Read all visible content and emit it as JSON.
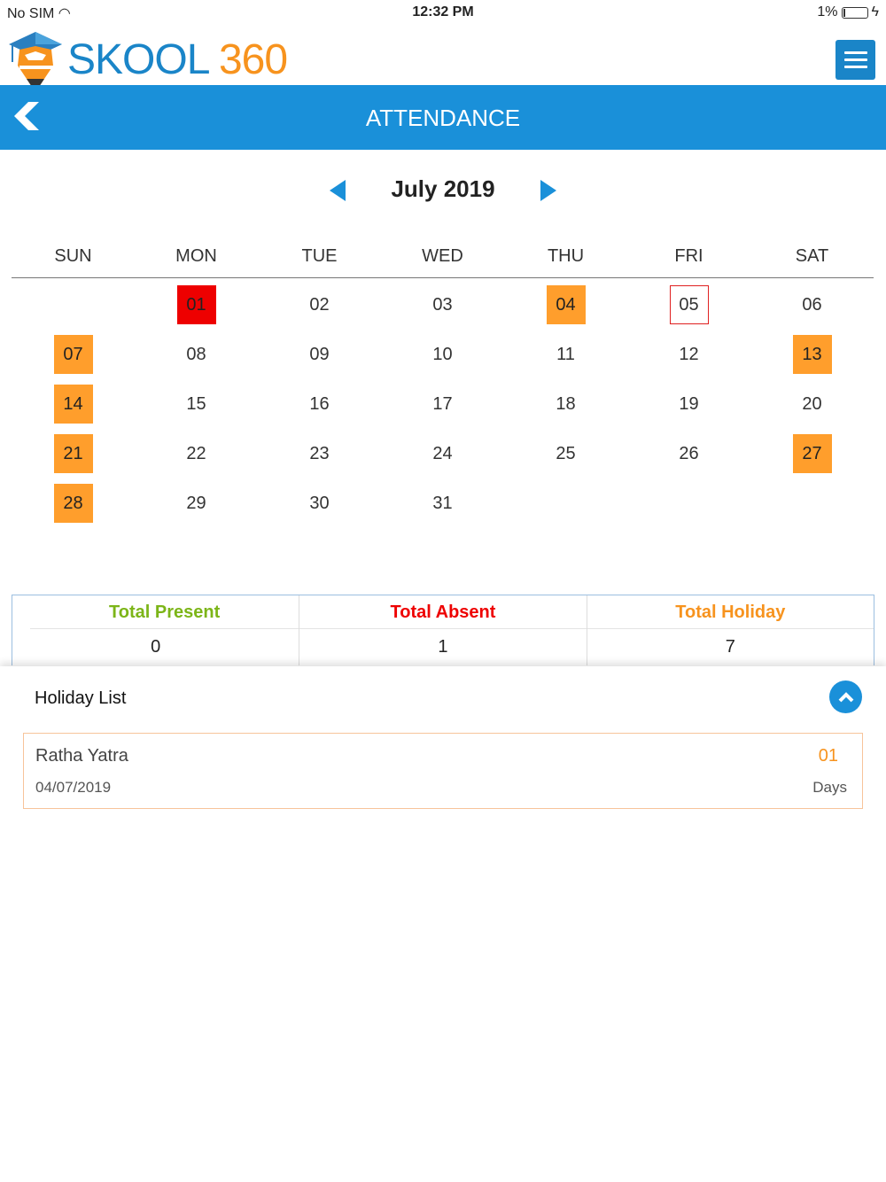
{
  "status_bar": {
    "carrier": "No SIM",
    "time": "12:32 PM",
    "battery": "1%"
  },
  "brand": {
    "part1": "SKOOL",
    "part2": "360"
  },
  "header": {
    "title": "ATTENDANCE"
  },
  "calendar": {
    "month_label": "July 2019",
    "weekdays": [
      "SUN",
      "MON",
      "TUE",
      "WED",
      "THU",
      "FRI",
      "SAT"
    ],
    "first_weekday_index": 1,
    "days": [
      "01",
      "02",
      "03",
      "04",
      "05",
      "06",
      "07",
      "08",
      "09",
      "10",
      "11",
      "12",
      "13",
      "14",
      "15",
      "16",
      "17",
      "18",
      "19",
      "20",
      "21",
      "22",
      "23",
      "24",
      "25",
      "26",
      "27",
      "28",
      "29",
      "30",
      "31"
    ],
    "absent": [
      "01"
    ],
    "holiday": [
      "04",
      "07",
      "13",
      "14",
      "21",
      "27",
      "28"
    ],
    "today": "05"
  },
  "summary": {
    "present_label": "Total Present",
    "present": "0",
    "absent_label": "Total Absent",
    "absent": "1",
    "holiday_label": "Total Holiday",
    "holiday": "7"
  },
  "holiday_list": {
    "title": "Holiday List",
    "items": [
      {
        "name": "Ratha Yatra",
        "date": "04/07/2019",
        "count": "01",
        "unit": "Days"
      }
    ]
  },
  "colors": {
    "primary": "#1a90d9",
    "absent": "#ee0000",
    "holiday": "#ff9e2c",
    "present": "#7cb518"
  }
}
